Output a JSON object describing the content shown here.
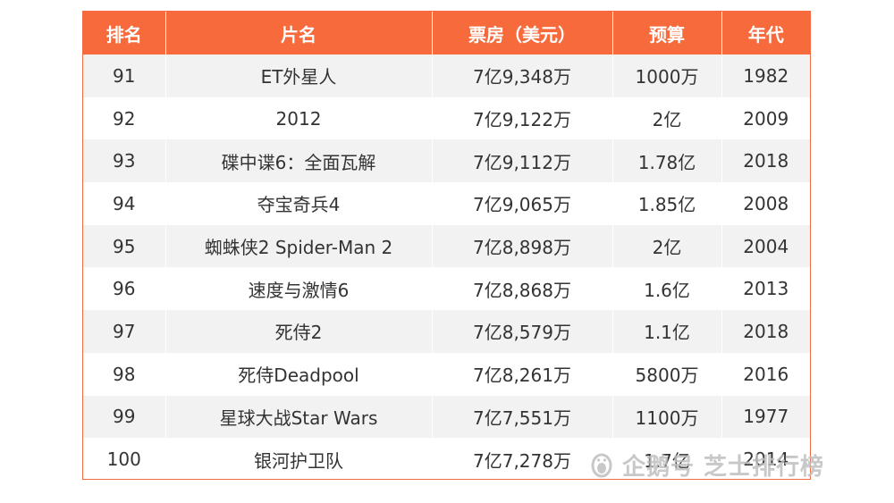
{
  "table": {
    "headers": [
      "排名",
      "片名",
      "票房（美元）",
      "预算",
      "年代"
    ],
    "rows": [
      {
        "rank": "91",
        "title": "ET外星人",
        "box_office": "7亿9,348万",
        "budget": "1000万",
        "year": "1982"
      },
      {
        "rank": "92",
        "title": "2012",
        "box_office": "7亿9,122万",
        "budget": "2亿",
        "year": "2009"
      },
      {
        "rank": "93",
        "title": "碟中谍6：全面瓦解",
        "box_office": "7亿9,112万",
        "budget": "1.78亿",
        "year": "2018"
      },
      {
        "rank": "94",
        "title": "夺宝奇兵4",
        "box_office": "7亿9,065万",
        "budget": "1.85亿",
        "year": "2008"
      },
      {
        "rank": "95",
        "title": "蜘蛛侠2 Spider-Man 2",
        "box_office": "7亿8,898万",
        "budget": "2亿",
        "year": "2004"
      },
      {
        "rank": "96",
        "title": "速度与激情6",
        "box_office": "7亿8,868万",
        "budget": "1.6亿",
        "year": "2013"
      },
      {
        "rank": "97",
        "title": "死侍2",
        "box_office": "7亿8,579万",
        "budget": "1.1亿",
        "year": "2018"
      },
      {
        "rank": "98",
        "title": "死侍Deadpool",
        "box_office": "7亿8,261万",
        "budget": "5800万",
        "year": "2016"
      },
      {
        "rank": "99",
        "title": "星球大战Star Wars",
        "box_office": "7亿7,551万",
        "budget": "1100万",
        "year": "1977"
      },
      {
        "rank": "100",
        "title": "银河护卫队",
        "box_office": "7亿7,278万",
        "budget": "1.7亿",
        "year": "2014"
      }
    ]
  },
  "watermark": {
    "text": "企鹅号 芝士排行榜",
    "icon": "penguin-logo-icon"
  },
  "colors": {
    "header_bg": "#f76a3c",
    "header_text": "#ffffff",
    "row_odd_bg": "#f2f2f2",
    "row_even_bg": "#ffffff",
    "border": "#f26a43"
  }
}
